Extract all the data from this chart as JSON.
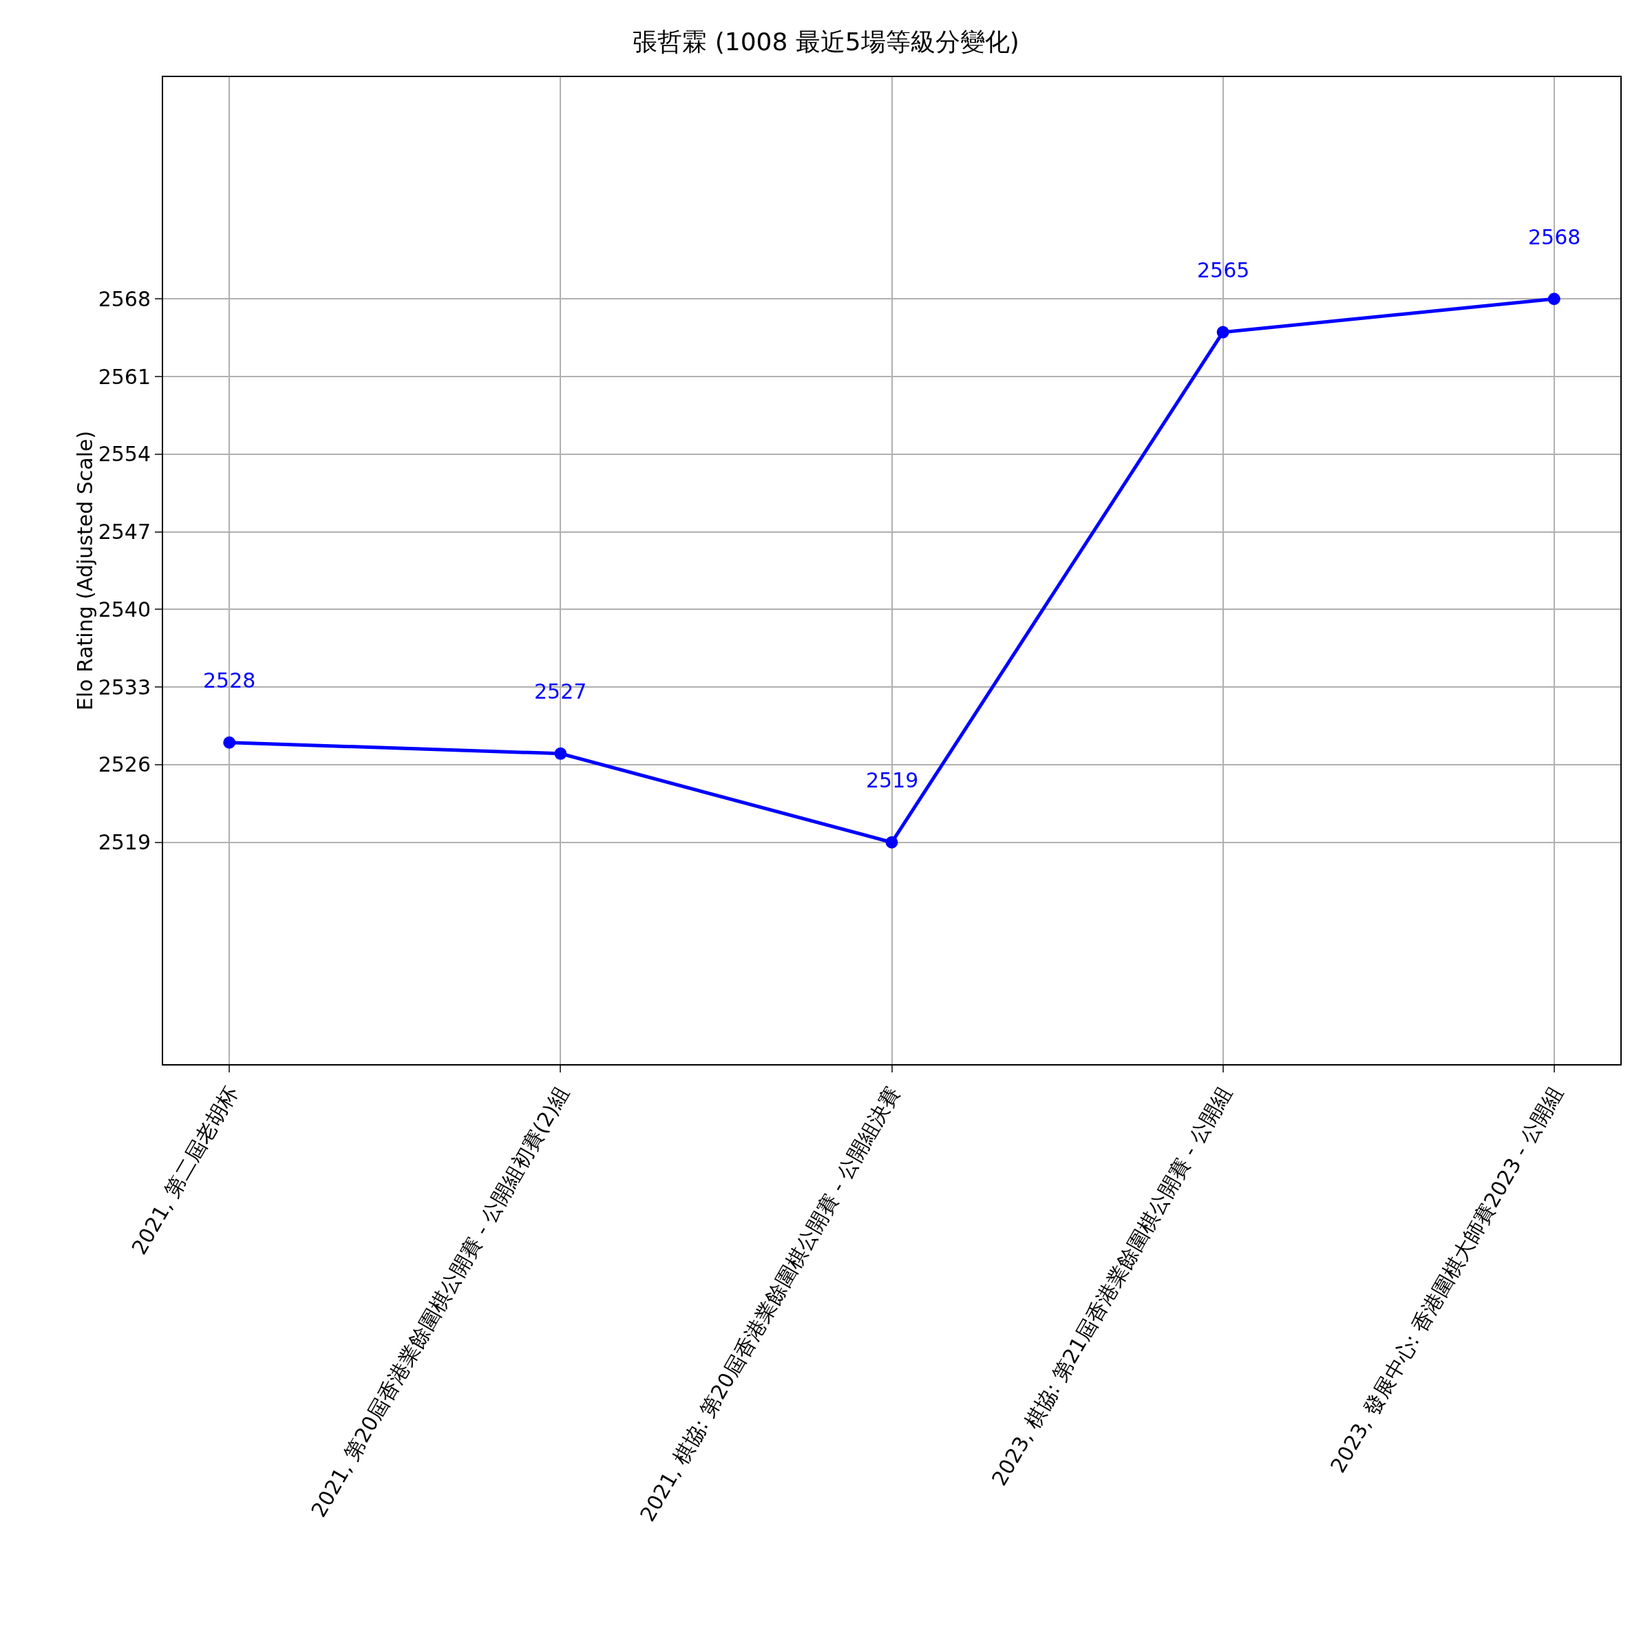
{
  "chart_data": {
    "type": "line",
    "title": "張哲霖 (1008 最近5場等級分變化)",
    "ylabel": "Elo Rating (Adjusted Scale)",
    "categories": [
      "2021, 第二屆老胡杯",
      "2021, 第20屆香港業餘圍棋公開賽 - 公開組初賽(2)組",
      "2021, 棋協: 第20屆香港業餘圍棋公開賽 - 公開組決賽",
      "2023, 棋協: 第21屆香港業餘圍棋公開賽 - 公開組",
      "2023, 發展中心: 香港圍棋大師賽2023 - 公開組"
    ],
    "series": [
      {
        "color": "#0000ff",
        "values": [
          2528,
          2527,
          2519,
          2565,
          2568
        ]
      }
    ],
    "ylim": [
      2499,
      2588
    ],
    "yticks": [
      2519,
      2526,
      2533,
      2540,
      2547,
      2554,
      2561,
      2568
    ],
    "grid": true,
    "marker": "circle",
    "line_style": "solid",
    "data_labels": true
  }
}
